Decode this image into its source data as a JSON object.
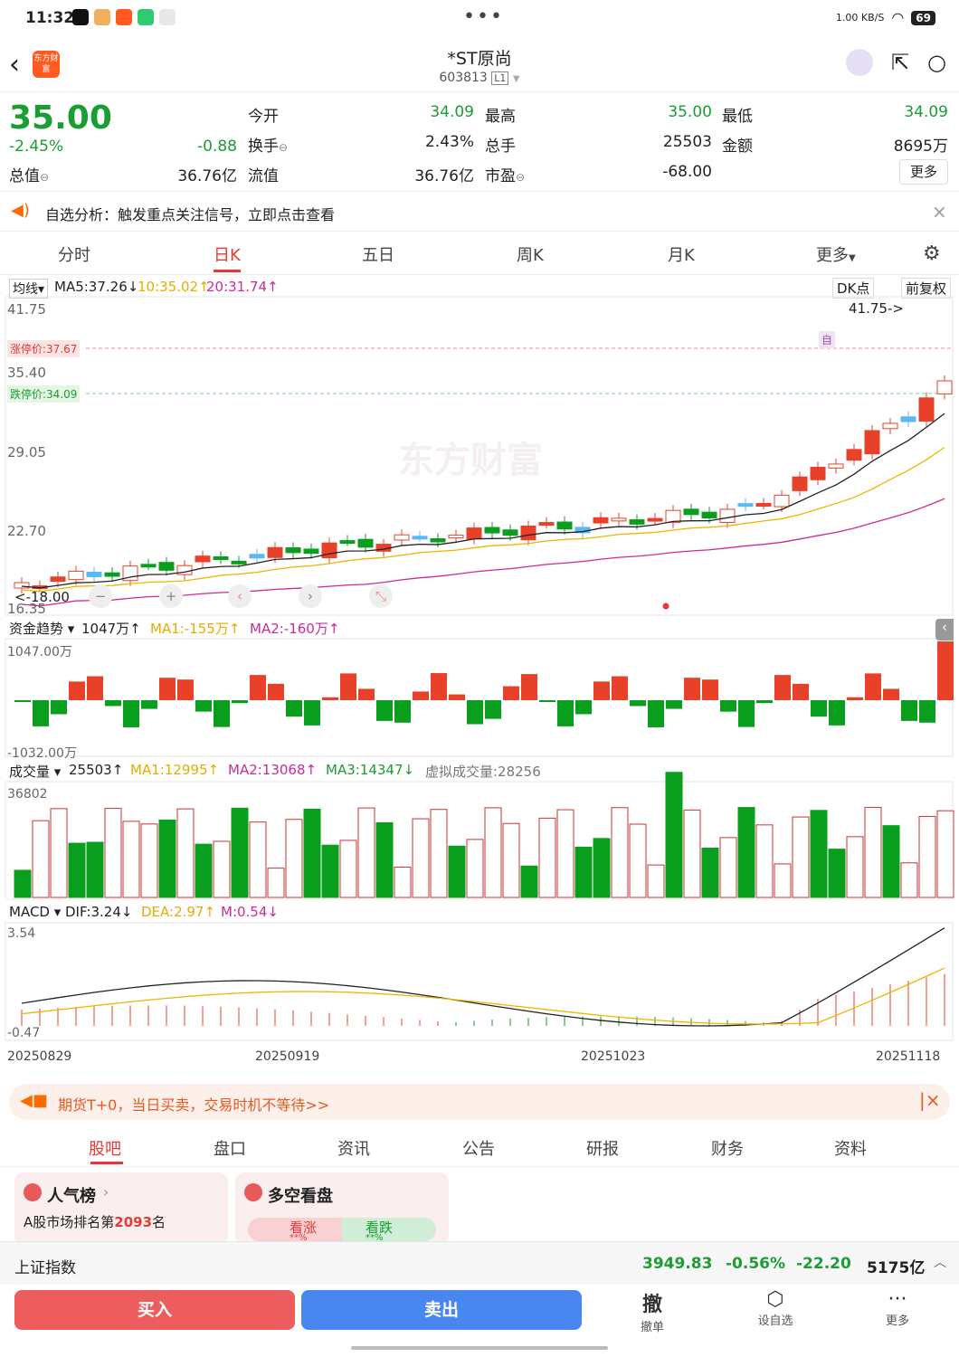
{
  "status_bar": {
    "time": "11:32",
    "speed": "1.00 KB/S",
    "battery": "69"
  },
  "nav": {
    "app_logo": "东方财富",
    "title": "*ST原尚",
    "code": "603813",
    "level": "L1"
  },
  "quote": {
    "price": "35.00",
    "change_pct": "-2.45%",
    "change": "-0.88",
    "total_value_label": "总值",
    "total_value": "36.76亿",
    "rows": [
      {
        "l1": "今开",
        "v1": "34.09",
        "l2": "最高",
        "v2": "35.00",
        "l3": "最低",
        "v3": "34.09"
      },
      {
        "l1": "换手",
        "v1": "2.43%",
        "l2": "总手",
        "v2": "25503",
        "l3": "金额",
        "v3": "8695万"
      },
      {
        "l1": "流值",
        "v1": "36.76亿",
        "l2": "市盈",
        "v2": "-68.00",
        "l3": "",
        "v3": ""
      }
    ],
    "more": "更多"
  },
  "alert": {
    "text": "自选分析：触发重点关注信号，立即点击查看"
  },
  "tabs": [
    "分时",
    "日K",
    "五日",
    "周K",
    "月K",
    "更多"
  ],
  "kline": {
    "ma_label": "均线",
    "ma5": "MA5:37.26↓",
    "ma10": "10:35.02↑",
    "ma20": "20:31.74↑",
    "dk": "DK点",
    "fq": "前复权",
    "y_ticks": [
      "41.75",
      "35.40",
      "29.05",
      "22.70",
      "16.35"
    ],
    "limit_up": "涨停价:37.67",
    "limit_down": "跌停价:34.09",
    "high_mark": "41.75->",
    "low_mark": "<-18.00",
    "self_mark": "自",
    "watermark": "东方财富",
    "colors": {
      "up": "#e8412a",
      "down": "#0a9e1f",
      "ma5": "#222222",
      "ma10": "#f0b400",
      "ma20": "#cc2a9a"
    }
  },
  "fund": {
    "label": "资金趋势",
    "value": "1047万↑",
    "ma1": "MA1:-155万↑",
    "ma2": "MA2:-160万↑",
    "top": "1047.00万",
    "bottom": "-1032.00万"
  },
  "volume": {
    "label": "成交量",
    "value": "25503↑",
    "ma1": "MA1:12995↑",
    "ma2": "MA2:13068↑",
    "ma3": "MA3:14347↓",
    "virtual": "虚拟成交量:28256",
    "top": "36802"
  },
  "macd": {
    "label": "MACD",
    "dif": "DIF:3.24↓",
    "dea": "DEA:2.97↑",
    "m": "M:0.54↓",
    "top": "3.54",
    "bottom": "-0.47"
  },
  "dates": [
    "20250829",
    "20250919",
    "20251023",
    "20251118"
  ],
  "promo": {
    "text": "期货T+0，当日买卖，交易时机不等待>>"
  },
  "tabs2": [
    "股吧",
    "盘口",
    "资讯",
    "公告",
    "研报",
    "财务",
    "资料"
  ],
  "cards": {
    "popular_title": "人气榜",
    "popular_rank_prefix": "A股市场排名第",
    "popular_rank": "2093",
    "popular_rank_suffix": "名",
    "ls_title": "多空看盘",
    "bull": "看涨",
    "bear": "看跌",
    "mask": "**%"
  },
  "index": {
    "name": "上证指数",
    "value": "3949.83",
    "pct": "-0.56%",
    "chg": "-22.20",
    "amount": "5175亿"
  },
  "bottom": {
    "buy": "买入",
    "sell": "卖出",
    "cancel": "撤单",
    "cancel_icon": "撤",
    "watch": "设自选",
    "more": "更多"
  }
}
